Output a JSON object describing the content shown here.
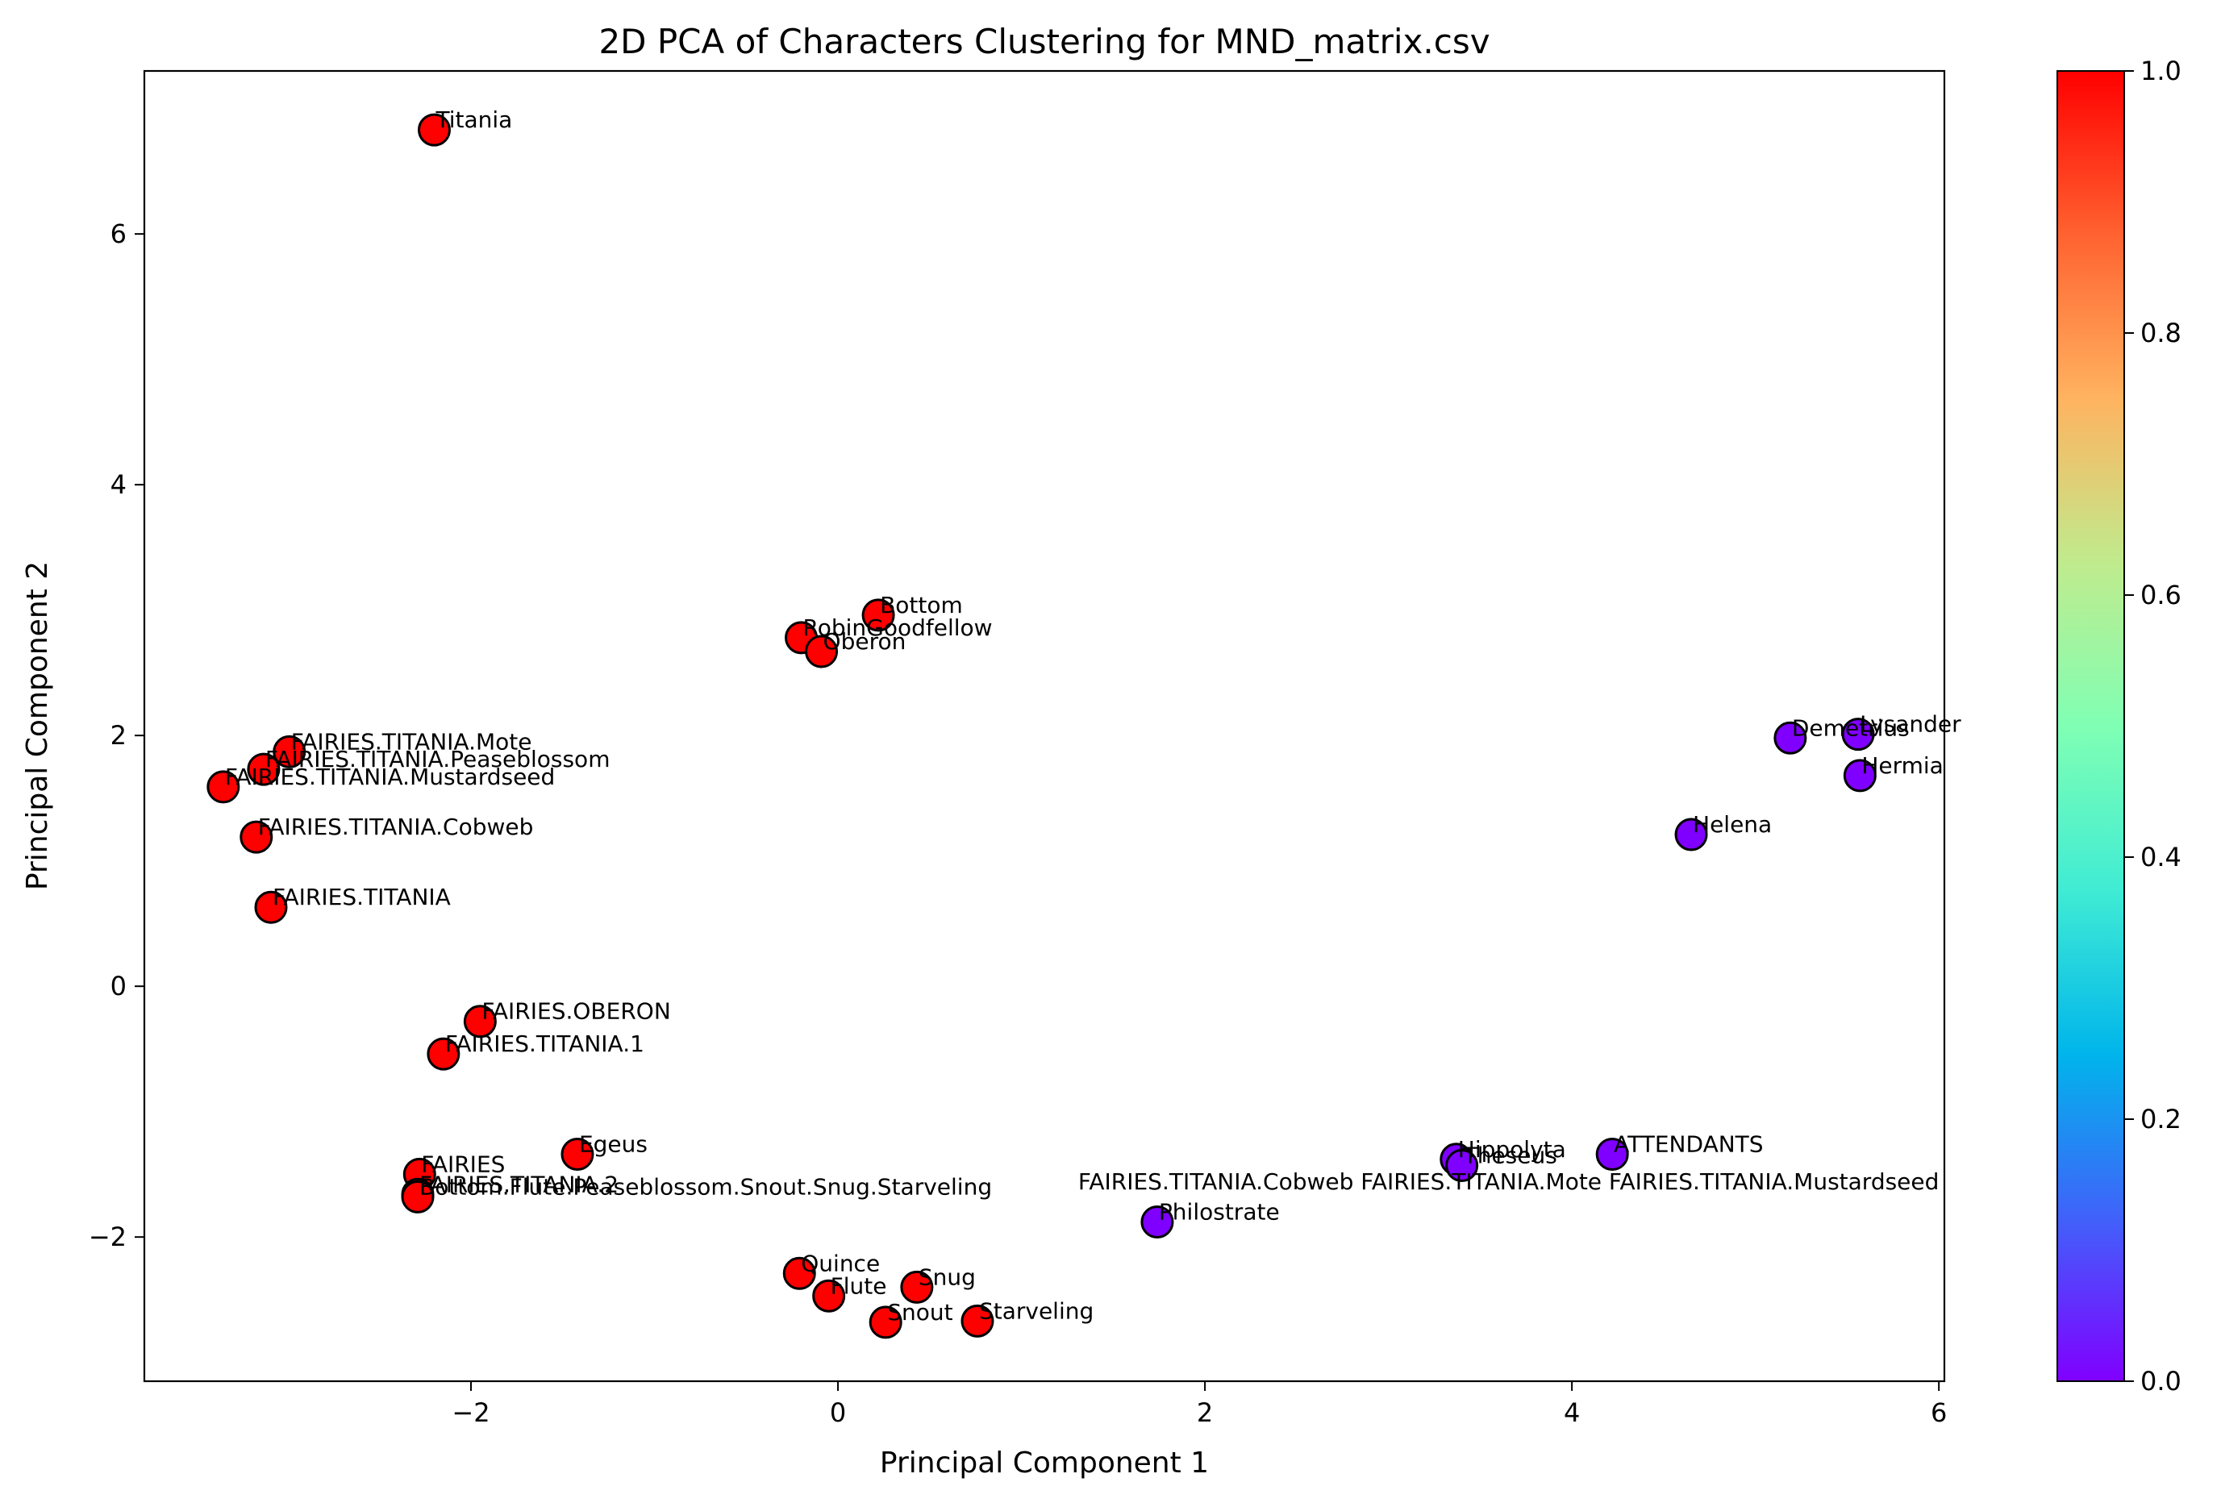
{
  "chart_data": {
    "type": "scatter",
    "title": "2D PCA of Characters Clustering for MND_matrix.csv",
    "xlabel": "Principal Component 1",
    "ylabel": "Principal Component 2",
    "xlim": [
      -3.78,
      6.03
    ],
    "ylim": [
      -3.15,
      7.3
    ],
    "xticks": [
      -2,
      0,
      2,
      4,
      6
    ],
    "yticks": [
      -2,
      0,
      2,
      4,
      6
    ],
    "xtick_labels": [
      "−2",
      "0",
      "2",
      "4",
      "6"
    ],
    "ytick_labels": [
      "−2",
      "0",
      "2",
      "4",
      "6"
    ],
    "grid": false,
    "colorbar": {
      "colormap": "rainbow",
      "range": [
        0.0,
        1.0
      ],
      "ticks": [
        0.0,
        0.2,
        0.4,
        0.6,
        0.8,
        1.0
      ],
      "tick_labels": [
        "0.0",
        "0.2",
        "0.4",
        "0.6",
        "0.8",
        "1.0"
      ],
      "low_color": "#8000ff",
      "high_color": "#ff0000"
    },
    "points": [
      {
        "label": "Titania",
        "x": -2.2,
        "y": 6.83,
        "cluster": 1
      },
      {
        "label": "Bottom",
        "x": 0.22,
        "y": 2.96,
        "cluster": 1
      },
      {
        "label": "RobinGoodfellow",
        "x": -0.2,
        "y": 2.78,
        "cluster": 1
      },
      {
        "label": "Oberon",
        "x": -0.09,
        "y": 2.67,
        "cluster": 1
      },
      {
        "label": "FAIRIES.TITANIA.Mote",
        "x": -2.99,
        "y": 1.87,
        "cluster": 1
      },
      {
        "label": "FAIRIES.TITANIA.Peaseblossom",
        "x": -3.13,
        "y": 1.73,
        "cluster": 1
      },
      {
        "label": "FAIRIES.TITANIA.Mustardseed",
        "x": -3.35,
        "y": 1.59,
        "cluster": 1
      },
      {
        "label": "FAIRIES.TITANIA.Cobweb",
        "x": -3.17,
        "y": 1.19,
        "cluster": 1
      },
      {
        "label": "FAIRIES.TITANIA",
        "x": -3.09,
        "y": 0.63,
        "cluster": 1
      },
      {
        "label": "FAIRIES.OBERON",
        "x": -1.95,
        "y": -0.28,
        "cluster": 1
      },
      {
        "label": "FAIRIES.TITANIA.1",
        "x": -2.15,
        "y": -0.54,
        "cluster": 1
      },
      {
        "label": "Egeus",
        "x": -1.42,
        "y": -1.34,
        "cluster": 1
      },
      {
        "label": "FAIRIES",
        "x": -2.28,
        "y": -1.5,
        "cluster": 1
      },
      {
        "label": "FAIRIES.TITANIA.2",
        "x": -2.29,
        "y": -1.66,
        "cluster": 1
      },
      {
        "label": "Bottom.Flute.Peaseblossom.Snout.Snug.Starveling",
        "x": -2.29,
        "y": -1.68,
        "cluster": 1
      },
      {
        "label": "Quince",
        "x": -0.21,
        "y": -2.29,
        "cluster": 1
      },
      {
        "label": "Flute",
        "x": -0.05,
        "y": -2.47,
        "cluster": 1
      },
      {
        "label": "Snug",
        "x": 0.43,
        "y": -2.4,
        "cluster": 1
      },
      {
        "label": "Snout",
        "x": 0.26,
        "y": -2.68,
        "cluster": 1
      },
      {
        "label": "Starveling",
        "x": 0.76,
        "y": -2.67,
        "cluster": 1
      },
      {
        "label": "Philostrate",
        "x": 1.74,
        "y": -1.88,
        "cluster": 0
      },
      {
        "label": "Hippolyta",
        "x": 3.37,
        "y": -1.38,
        "cluster": 0
      },
      {
        "label": "Theseus",
        "x": 3.4,
        "y": -1.43,
        "cluster": 0
      },
      {
        "label": "FAIRIES.TITANIA.Cobweb FAIRIES.TITANIA.Mote FAIRIES.TITANIA.Mustardseed",
        "x": 1.3,
        "y": -1.64,
        "cluster": 0,
        "marker": false
      },
      {
        "label": "ATTENDANTS",
        "x": 4.22,
        "y": -1.34,
        "cluster": 0
      },
      {
        "label": "Helena",
        "x": 4.65,
        "y": 1.21,
        "cluster": 0
      },
      {
        "label": "Demetrius",
        "x": 5.19,
        "y": 1.98,
        "cluster": 0
      },
      {
        "label": "Lysander",
        "x": 5.56,
        "y": 2.01,
        "cluster": 0
      },
      {
        "label": "Hermia",
        "x": 5.57,
        "y": 1.68,
        "cluster": 0
      }
    ]
  }
}
